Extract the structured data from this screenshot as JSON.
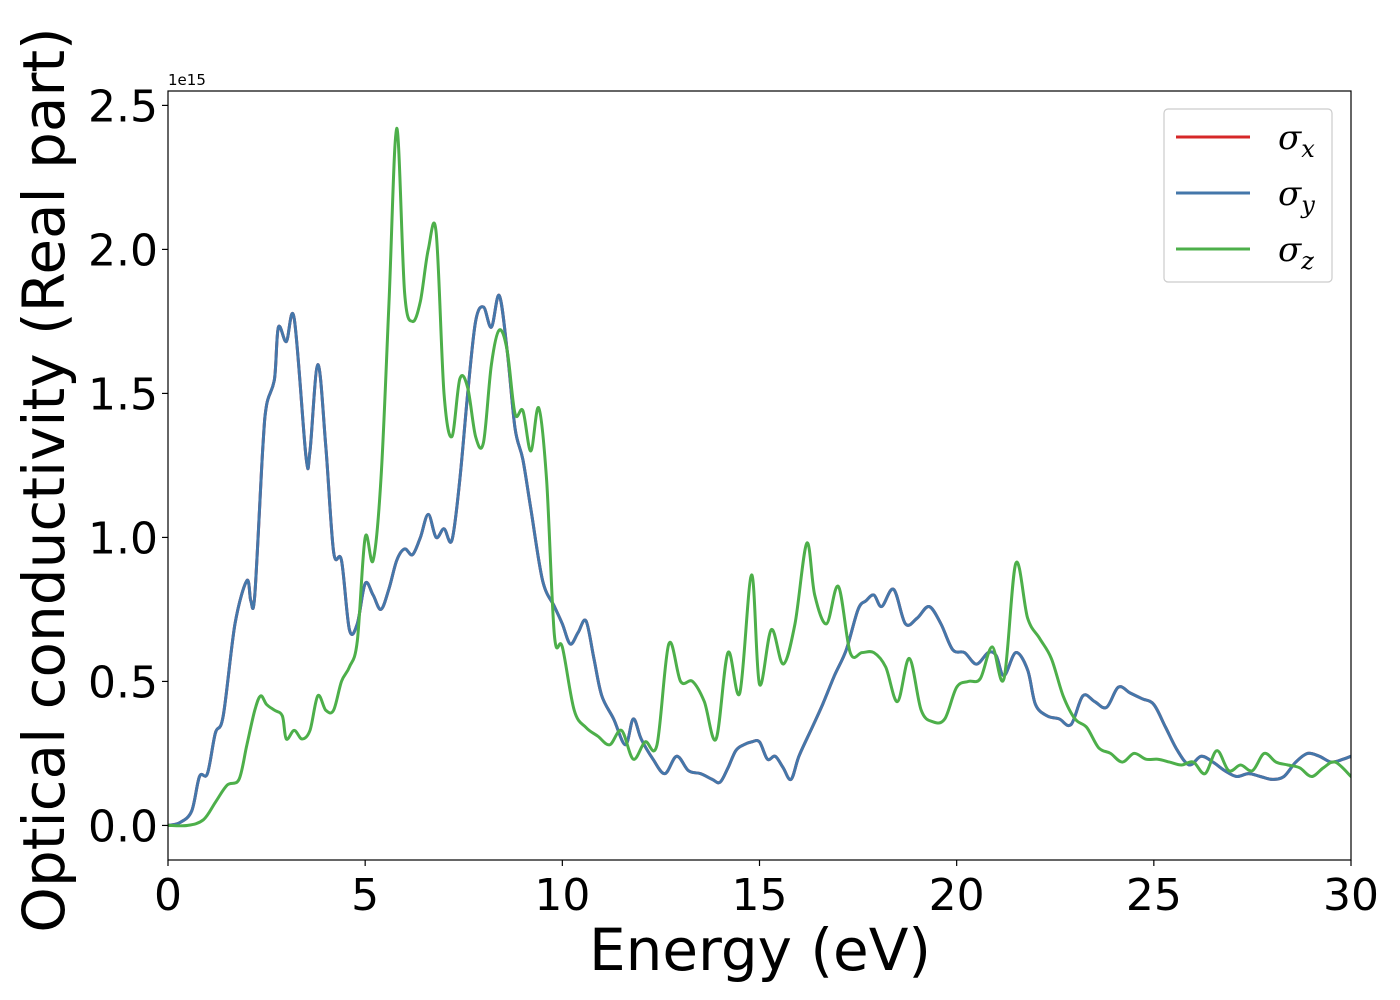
{
  "chart_data": {
    "type": "line",
    "xlabel": "Energy (eV)",
    "ylabel": "Optical conductivity (Real part)",
    "y_offset_text": "1e15",
    "xlim": [
      0,
      30
    ],
    "ylim": [
      -0.12,
      2.55
    ],
    "xticks": [
      0,
      5,
      10,
      15,
      20,
      25,
      30
    ],
    "xtick_labels": [
      "0",
      "5",
      "10",
      "15",
      "20",
      "25",
      "30"
    ],
    "yticks": [
      0.0,
      0.5,
      1.0,
      1.5,
      2.0,
      2.5
    ],
    "ytick_labels": [
      "0.0",
      "0.5",
      "1.0",
      "1.5",
      "2.0",
      "2.5"
    ],
    "grid": false,
    "legend_position": "top-right",
    "colors": {
      "x": "#d62728",
      "y": "#4477aa",
      "z": "#4daf4a"
    },
    "legend": [
      {
        "symbol": "σ",
        "sub": "x",
        "color": "#d62728"
      },
      {
        "symbol": "σ",
        "sub": "y",
        "color": "#4477aa"
      },
      {
        "symbol": "σ",
        "sub": "z",
        "color": "#4daf4a"
      }
    ],
    "series": [
      {
        "key": "y",
        "color": "#4477aa",
        "x": [
          0,
          0.3,
          0.6,
          0.8,
          1.0,
          1.2,
          1.4,
          1.7,
          2.0,
          2.1,
          2.2,
          2.4,
          2.5,
          2.7,
          2.8,
          3.0,
          3.2,
          3.5,
          3.6,
          3.8,
          4.0,
          4.2,
          4.4,
          4.6,
          4.8,
          5.0,
          5.2,
          5.4,
          5.6,
          5.8,
          6.0,
          6.2,
          6.4,
          6.6,
          6.8,
          7.0,
          7.2,
          7.4,
          7.6,
          7.8,
          8.0,
          8.2,
          8.4,
          8.6,
          8.8,
          9.0,
          9.2,
          9.5,
          9.8,
          10.0,
          10.2,
          10.4,
          10.6,
          10.8,
          11.0,
          11.3,
          11.6,
          11.8,
          12.0,
          12.3,
          12.6,
          12.9,
          13.2,
          13.5,
          13.8,
          14.0,
          14.2,
          14.4,
          14.6,
          14.8,
          15.0,
          15.2,
          15.4,
          15.6,
          15.8,
          16.0,
          16.3,
          16.6,
          16.9,
          17.2,
          17.5,
          17.7,
          17.9,
          18.1,
          18.4,
          18.7,
          19.0,
          19.3,
          19.6,
          19.9,
          20.2,
          20.5,
          20.8,
          21.0,
          21.2,
          21.5,
          21.8,
          22.0,
          22.3,
          22.6,
          22.9,
          23.2,
          23.5,
          23.8,
          24.1,
          24.4,
          24.7,
          25.0,
          25.3,
          25.6,
          25.9,
          26.2,
          26.5,
          26.8,
          27.1,
          27.4,
          27.7,
          28.0,
          28.3,
          28.6,
          28.9,
          29.2,
          29.5,
          29.8,
          30.0
        ],
        "values": [
          0.0,
          0.01,
          0.05,
          0.17,
          0.18,
          0.32,
          0.38,
          0.7,
          0.85,
          0.78,
          0.8,
          1.3,
          1.46,
          1.55,
          1.73,
          1.68,
          1.76,
          1.28,
          1.3,
          1.6,
          1.32,
          0.95,
          0.92,
          0.68,
          0.7,
          0.84,
          0.8,
          0.75,
          0.82,
          0.92,
          0.96,
          0.94,
          1.0,
          1.08,
          1.0,
          1.03,
          0.99,
          1.2,
          1.5,
          1.75,
          1.8,
          1.73,
          1.84,
          1.65,
          1.38,
          1.27,
          1.1,
          0.85,
          0.76,
          0.7,
          0.63,
          0.67,
          0.71,
          0.58,
          0.45,
          0.37,
          0.28,
          0.37,
          0.3,
          0.23,
          0.18,
          0.24,
          0.19,
          0.18,
          0.16,
          0.15,
          0.2,
          0.26,
          0.28,
          0.29,
          0.29,
          0.23,
          0.24,
          0.2,
          0.16,
          0.24,
          0.33,
          0.42,
          0.52,
          0.61,
          0.75,
          0.78,
          0.8,
          0.76,
          0.82,
          0.7,
          0.72,
          0.76,
          0.7,
          0.61,
          0.6,
          0.56,
          0.6,
          0.59,
          0.52,
          0.6,
          0.54,
          0.42,
          0.38,
          0.37,
          0.35,
          0.45,
          0.43,
          0.41,
          0.48,
          0.46,
          0.44,
          0.42,
          0.34,
          0.26,
          0.21,
          0.24,
          0.22,
          0.19,
          0.17,
          0.18,
          0.17,
          0.16,
          0.17,
          0.22,
          0.25,
          0.24,
          0.22,
          0.23,
          0.24
        ]
      },
      {
        "key": "x",
        "color": "#d62728",
        "hidden_under": "y",
        "x": [
          0,
          0.3,
          0.6,
          0.8,
          1.0,
          1.2,
          1.4,
          1.7,
          2.0,
          2.1,
          2.2,
          2.4,
          2.5,
          2.7,
          2.8,
          3.0,
          3.2,
          3.5,
          3.6,
          3.8,
          4.0,
          4.2,
          4.4,
          4.6,
          4.8,
          5.0,
          5.2,
          5.4,
          5.6,
          5.8,
          6.0,
          6.2,
          6.4,
          6.6,
          6.8,
          7.0,
          7.2,
          7.4,
          7.6,
          7.8,
          8.0,
          8.2,
          8.4,
          8.6,
          8.8,
          9.0,
          9.2,
          9.5,
          9.8,
          10.0,
          10.2,
          10.4,
          10.6,
          10.8,
          11.0,
          11.3,
          11.6,
          11.8,
          12.0,
          12.3,
          12.6,
          12.9,
          13.2,
          13.5,
          13.8,
          14.0,
          14.2,
          14.4,
          14.6,
          14.8,
          15.0,
          15.2,
          15.4,
          15.6,
          15.8,
          16.0,
          16.3,
          16.6,
          16.9,
          17.2,
          17.5,
          17.7,
          17.9,
          18.1,
          18.4,
          18.7,
          19.0,
          19.3,
          19.6,
          19.9,
          20.2,
          20.5,
          20.8,
          21.0,
          21.2,
          21.5,
          21.8,
          22.0,
          22.3,
          22.6,
          22.9,
          23.2,
          23.5,
          23.8,
          24.1,
          24.4,
          24.7,
          25.0,
          25.3,
          25.6,
          25.9,
          26.2,
          26.5,
          26.8,
          27.1,
          27.4,
          27.7,
          28.0,
          28.3,
          28.6,
          28.9,
          29.2,
          29.5,
          29.8,
          30.0
        ],
        "values": [
          0.0,
          0.01,
          0.05,
          0.17,
          0.18,
          0.32,
          0.38,
          0.7,
          0.85,
          0.78,
          0.8,
          1.3,
          1.46,
          1.55,
          1.73,
          1.68,
          1.76,
          1.28,
          1.3,
          1.6,
          1.32,
          0.95,
          0.92,
          0.68,
          0.7,
          0.84,
          0.8,
          0.75,
          0.82,
          0.92,
          0.96,
          0.94,
          1.0,
          1.08,
          1.0,
          1.03,
          0.99,
          1.2,
          1.5,
          1.75,
          1.8,
          1.73,
          1.84,
          1.65,
          1.38,
          1.27,
          1.1,
          0.85,
          0.76,
          0.7,
          0.63,
          0.67,
          0.71,
          0.58,
          0.45,
          0.37,
          0.28,
          0.37,
          0.3,
          0.23,
          0.18,
          0.24,
          0.19,
          0.18,
          0.16,
          0.15,
          0.2,
          0.26,
          0.28,
          0.29,
          0.29,
          0.23,
          0.24,
          0.2,
          0.16,
          0.24,
          0.33,
          0.42,
          0.52,
          0.61,
          0.75,
          0.78,
          0.8,
          0.76,
          0.82,
          0.7,
          0.72,
          0.76,
          0.7,
          0.61,
          0.6,
          0.56,
          0.6,
          0.59,
          0.52,
          0.6,
          0.54,
          0.42,
          0.38,
          0.37,
          0.35,
          0.45,
          0.43,
          0.41,
          0.48,
          0.46,
          0.44,
          0.42,
          0.34,
          0.26,
          0.21,
          0.24,
          0.22,
          0.19,
          0.17,
          0.18,
          0.17,
          0.16,
          0.17,
          0.22,
          0.25,
          0.24,
          0.22,
          0.23,
          0.24
        ]
      },
      {
        "key": "z",
        "color": "#4daf4a",
        "x": [
          0,
          0.5,
          0.9,
          1.2,
          1.5,
          1.8,
          2.0,
          2.2,
          2.35,
          2.5,
          2.7,
          2.9,
          3.0,
          3.2,
          3.4,
          3.6,
          3.8,
          4.0,
          4.2,
          4.4,
          4.6,
          4.8,
          5.0,
          5.2,
          5.4,
          5.6,
          5.8,
          6.0,
          6.2,
          6.4,
          6.6,
          6.8,
          7.0,
          7.2,
          7.4,
          7.6,
          7.8,
          8.0,
          8.2,
          8.4,
          8.6,
          8.8,
          9.0,
          9.2,
          9.4,
          9.6,
          9.8,
          10.0,
          10.3,
          10.6,
          10.9,
          11.2,
          11.5,
          11.8,
          12.1,
          12.4,
          12.7,
          13.0,
          13.3,
          13.6,
          13.9,
          14.2,
          14.5,
          14.8,
          15.0,
          15.3,
          15.6,
          15.9,
          16.2,
          16.4,
          16.7,
          17.0,
          17.3,
          17.6,
          17.9,
          18.2,
          18.5,
          18.8,
          19.1,
          19.4,
          19.7,
          20.0,
          20.3,
          20.6,
          20.9,
          21.2,
          21.5,
          21.8,
          22.1,
          22.4,
          22.7,
          23.0,
          23.3,
          23.6,
          23.9,
          24.2,
          24.5,
          24.8,
          25.1,
          25.4,
          25.7,
          26.0,
          26.3,
          26.6,
          26.9,
          27.2,
          27.5,
          27.8,
          28.1,
          28.4,
          28.7,
          29.0,
          29.3,
          29.6,
          30.0
        ],
        "values": [
          0.0,
          0.0,
          0.02,
          0.08,
          0.14,
          0.16,
          0.28,
          0.4,
          0.45,
          0.42,
          0.4,
          0.38,
          0.3,
          0.33,
          0.3,
          0.33,
          0.45,
          0.4,
          0.4,
          0.5,
          0.55,
          0.64,
          1.0,
          0.92,
          1.2,
          1.8,
          2.42,
          1.85,
          1.75,
          1.82,
          2.0,
          2.06,
          1.5,
          1.35,
          1.55,
          1.52,
          1.35,
          1.33,
          1.6,
          1.72,
          1.65,
          1.43,
          1.44,
          1.3,
          1.45,
          1.2,
          0.66,
          0.62,
          0.4,
          0.34,
          0.31,
          0.28,
          0.33,
          0.23,
          0.29,
          0.28,
          0.63,
          0.5,
          0.5,
          0.43,
          0.3,
          0.6,
          0.46,
          0.87,
          0.49,
          0.68,
          0.56,
          0.7,
          0.98,
          0.8,
          0.7,
          0.83,
          0.6,
          0.6,
          0.6,
          0.55,
          0.43,
          0.58,
          0.4,
          0.36,
          0.37,
          0.48,
          0.5,
          0.51,
          0.62,
          0.51,
          0.91,
          0.72,
          0.65,
          0.58,
          0.45,
          0.37,
          0.34,
          0.27,
          0.25,
          0.22,
          0.25,
          0.23,
          0.23,
          0.22,
          0.21,
          0.22,
          0.18,
          0.26,
          0.19,
          0.21,
          0.19,
          0.25,
          0.22,
          0.21,
          0.2,
          0.17,
          0.2,
          0.22,
          0.17
        ]
      }
    ]
  }
}
